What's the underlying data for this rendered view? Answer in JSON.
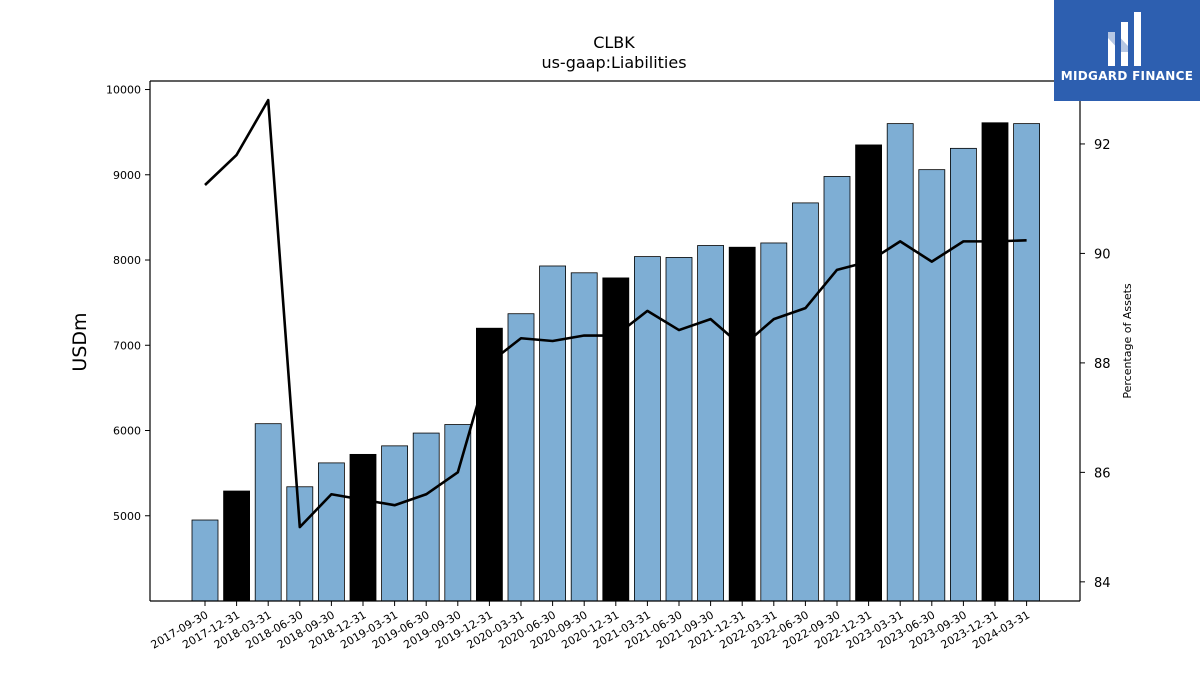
{
  "chart_data": {
    "type": "bar",
    "title": "CLBK",
    "subtitle": "us-gaap:Liabilities",
    "ylabel": "USDm",
    "y2label": "Percentage of Assets",
    "ylim": [
      4000,
      10100
    ],
    "y2lim": [
      83.65,
      93.15
    ],
    "yticks": [
      5000,
      6000,
      7000,
      8000,
      9000,
      10000
    ],
    "y2ticks": [
      84,
      86,
      88,
      90,
      92
    ],
    "categories": [
      "2017-09-30",
      "2017-12-31",
      "2018-03-31",
      "2018-06-30",
      "2018-09-30",
      "2018-12-31",
      "2019-03-31",
      "2019-06-30",
      "2019-09-30",
      "2019-12-31",
      "2020-03-31",
      "2020-06-30",
      "2020-09-30",
      "2020-12-31",
      "2021-03-31",
      "2021-06-30",
      "2021-09-30",
      "2021-12-31",
      "2022-03-31",
      "2022-06-30",
      "2022-09-30",
      "2022-12-31",
      "2023-03-31",
      "2023-06-30",
      "2023-09-30",
      "2023-12-31",
      "2024-03-31"
    ],
    "series": [
      {
        "type": "bar",
        "values": [
          4950,
          5290,
          6080,
          5340,
          5620,
          5720,
          5820,
          5970,
          6070,
          7200,
          7370,
          7930,
          7850,
          7790,
          8040,
          8030,
          8170,
          8150,
          8200,
          8670,
          8980,
          9350,
          9600,
          9060,
          9310,
          9610,
          9600
        ],
        "highlight": [
          false,
          true,
          false,
          false,
          false,
          true,
          false,
          false,
          false,
          true,
          false,
          false,
          false,
          true,
          false,
          false,
          false,
          true,
          false,
          false,
          false,
          true,
          false,
          false,
          false,
          true,
          false
        ]
      },
      {
        "type": "line",
        "axis": "right",
        "values": [
          91.25,
          91.8,
          92.8,
          85.0,
          85.6,
          85.5,
          85.4,
          85.6,
          86.0,
          88.0,
          88.45,
          88.4,
          88.5,
          88.5,
          88.95,
          88.6,
          88.8,
          88.3,
          88.8,
          89.0,
          89.7,
          89.85,
          90.22,
          89.85,
          90.22,
          90.22,
          90.24
        ]
      }
    ],
    "colors": {
      "bar": "#7eaed4",
      "bar_highlight": "#000000",
      "line": "#000000"
    },
    "grid": false,
    "legend": "none"
  },
  "logo": {
    "text": "MIDGARD FINANCE",
    "color": "#2d5fb0"
  }
}
